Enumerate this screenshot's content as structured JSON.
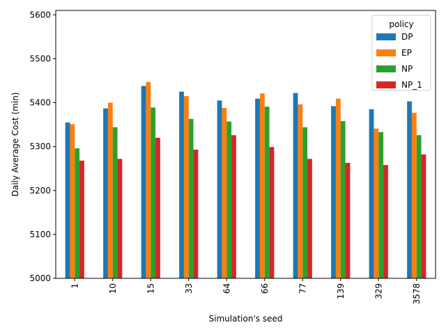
{
  "chart_data": {
    "type": "bar",
    "title": "",
    "xlabel": "Simulation's seed",
    "ylabel": "Daily Average Cost (min)",
    "ylim": [
      5000,
      5610
    ],
    "yticks": [
      5000,
      5100,
      5200,
      5300,
      5400,
      5500,
      5600
    ],
    "categories": [
      "1",
      "10",
      "15",
      "33",
      "64",
      "66",
      "77",
      "139",
      "329",
      "3578"
    ],
    "legend": {
      "title": "policy",
      "position": "top-right"
    },
    "grid": false,
    "series": [
      {
        "name": "DP",
        "color": "#1f77b4",
        "values": [
          5355,
          5387,
          5438,
          5425,
          5405,
          5409,
          5422,
          5392,
          5385,
          5403
        ]
      },
      {
        "name": "EP",
        "color": "#ff7f0e",
        "values": [
          5351,
          5400,
          5447,
          5415,
          5388,
          5421,
          5396,
          5409,
          5341,
          5377
        ]
      },
      {
        "name": "NP",
        "color": "#2ca02c",
        "values": [
          5296,
          5344,
          5389,
          5363,
          5357,
          5391,
          5344,
          5358,
          5333,
          5326
        ]
      },
      {
        "name": "NP_1",
        "color": "#d62728",
        "values": [
          5268,
          5272,
          5320,
          5293,
          5326,
          5299,
          5272,
          5263,
          5258,
          5282
        ]
      }
    ]
  }
}
